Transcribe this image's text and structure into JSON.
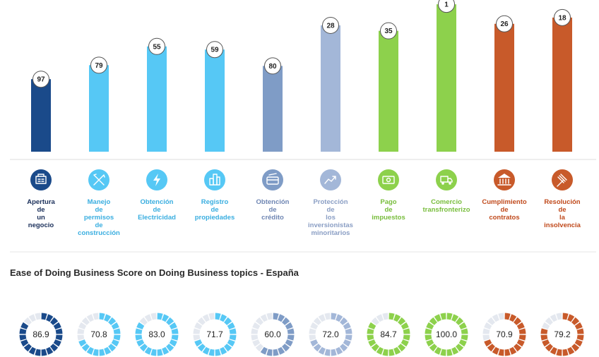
{
  "chart_data": [
    {
      "type": "bar",
      "title": "",
      "categories": [
        "Apertura de un negocio",
        "Manejo de permisos de construcción",
        "Obtención de Electricidad",
        "Registro de propiedades",
        "Obtención de crédito",
        "Protección de los inversionistas minoritarios",
        "Pago de impuestos",
        "Comercio transfronterizo",
        "Cumplimiento de contratos",
        "Resolución de la insolvencia"
      ],
      "category_lines": [
        [
          "Apertura",
          "de",
          "un",
          "negocio"
        ],
        [
          "Manejo",
          "de",
          "permisos",
          "de",
          "construcción"
        ],
        [
          "Obtención",
          "de",
          "Electricidad"
        ],
        [
          "Registro",
          "de",
          "propiedades"
        ],
        [
          "Obtención",
          "de",
          "crédito"
        ],
        [
          "Protección",
          "de",
          "los",
          "inversionistas",
          "minoritarios"
        ],
        [
          "Pago",
          "de",
          "impuestos"
        ],
        [
          "Comercio",
          "transfronterizo"
        ],
        [
          "Cumplimiento",
          "de",
          "contratos"
        ],
        [
          "Resolución",
          "de",
          "la",
          "insolvencia"
        ]
      ],
      "values": [
        97,
        79,
        55,
        59,
        80,
        28,
        35,
        1,
        26,
        18
      ],
      "colors": [
        "#1a4a8a",
        "#56c8f5",
        "#56c8f5",
        "#56c8f5",
        "#7f9cc6",
        "#a3b7d8",
        "#8dd14c",
        "#8dd14c",
        "#c85a2a",
        "#c85a2a"
      ],
      "label_colors": [
        "#1a2f5a",
        "#3aaee0",
        "#3aaee0",
        "#3aaee0",
        "#6f86b3",
        "#8a9ec4",
        "#78bd3c",
        "#78bd3c",
        "#c04a1c",
        "#c04a1c"
      ],
      "icons": [
        "building-icon",
        "tools-icon",
        "lightning-icon",
        "buildings-icon",
        "credit-card-icon",
        "trend-up-icon",
        "money-icon",
        "truck-icon",
        "courthouse-icon",
        "gavel-icon"
      ],
      "ylim": [
        0,
        190
      ]
    },
    {
      "type": "donut",
      "title": "Ease of Doing Business Score on Doing Business topics - España",
      "values": [
        86.9,
        70.8,
        83.0,
        71.7,
        60.0,
        72.0,
        84.7,
        100.0,
        70.9,
        79.2
      ],
      "value_labels": [
        "86.9",
        "70.8",
        "83.0",
        "71.7",
        "60.0",
        "72.0",
        "84.7",
        "100.0",
        "70.9",
        "79.2"
      ],
      "max": 100
    }
  ]
}
